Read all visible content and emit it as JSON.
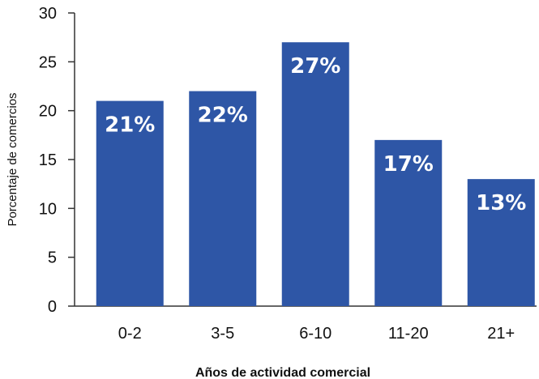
{
  "chart_data": {
    "type": "bar",
    "title": "",
    "xlabel": "Años de actividad comercial",
    "ylabel": "Porcentaje de comercios",
    "categories": [
      "0-2",
      "3-5",
      "6-10",
      "11-20",
      "21+"
    ],
    "values": [
      21,
      22,
      27,
      17,
      13
    ],
    "data_labels": [
      "21%",
      "22%",
      "27%",
      "17%",
      "13%"
    ],
    "yticks": [
      "0",
      "5",
      "10",
      "15",
      "20",
      "25",
      "30"
    ],
    "ylim": [
      0,
      30
    ],
    "grid": false,
    "legend": "none",
    "colors": {
      "bar": "#2e56a6",
      "axis": "#333333",
      "text": "#111111",
      "label": "#ffffff"
    }
  }
}
